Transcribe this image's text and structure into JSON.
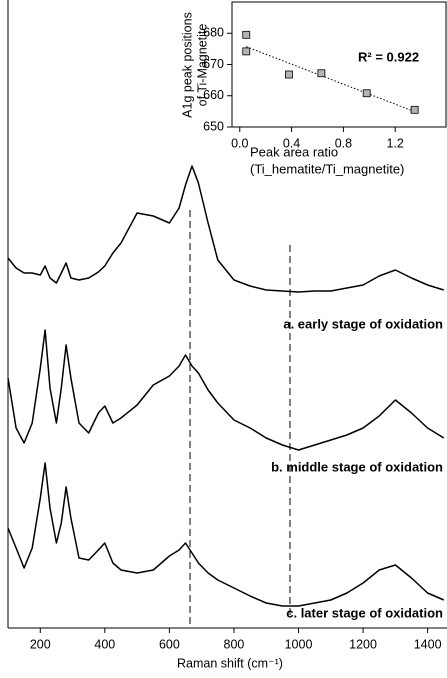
{
  "chart_data": [
    {
      "type": "line",
      "x_label": "Raman shift (cm⁻¹)",
      "x": [
        100,
        125,
        150,
        175,
        200,
        215,
        230,
        250,
        265,
        280,
        295,
        320,
        350,
        380,
        400,
        425,
        450,
        500,
        550,
        600,
        630,
        650,
        670,
        690,
        720,
        750,
        800,
        850,
        900,
        950,
        1000,
        1050,
        1100,
        1150,
        1200,
        1250,
        1300,
        1350,
        1400,
        1450
      ],
      "series": [
        {
          "name": "a. early stage of oxidation",
          "color": "#000000",
          "values": [
            370,
            360,
            355,
            355,
            353,
            362,
            350,
            345,
            355,
            365,
            350,
            348,
            350,
            356,
            362,
            375,
            385,
            415,
            412,
            405,
            420,
            443,
            462,
            445,
            405,
            368,
            348,
            342,
            338,
            337,
            336,
            337,
            337,
            340,
            343,
            352,
            358,
            350,
            343,
            338
          ]
        },
        {
          "name": "b. middle stage of oxidation",
          "color": "#000000",
          "values": [
            250,
            200,
            185,
            205,
            260,
            298,
            240,
            205,
            240,
            283,
            250,
            205,
            195,
            215,
            222,
            205,
            210,
            223,
            243,
            252,
            262,
            273,
            262,
            255,
            238,
            225,
            208,
            200,
            190,
            183,
            178,
            183,
            188,
            193,
            200,
            212,
            228,
            215,
            200,
            190
          ]
        },
        {
          "name": "c. later stage of oxidation",
          "color": "#000000",
          "values": [
            100,
            80,
            60,
            80,
            130,
            165,
            120,
            85,
            105,
            141,
            110,
            70,
            68,
            78,
            85,
            65,
            58,
            55,
            58,
            72,
            78,
            85,
            75,
            65,
            55,
            48,
            40,
            32,
            25,
            22,
            22,
            25,
            28,
            35,
            45,
            58,
            63,
            50,
            35,
            28
          ]
        }
      ],
      "xlim": [
        100,
        1460
      ],
      "xticks": [
        200,
        400,
        600,
        800,
        1000,
        1200,
        1400
      ],
      "ylim": [
        0,
        600
      ]
    },
    {
      "type": "scatter",
      "y_label": [
        "A1g peak positions",
        "of Ti-Magnetite"
      ],
      "x_label": [
        "Peak area ratio",
        "(Ti_hematite/Ti_magnetite)"
      ],
      "annotation": "R² = 0.922",
      "x": [
        0.05,
        0.05,
        0.38,
        0.63,
        0.98,
        1.35
      ],
      "values": [
        679.5,
        674.2,
        666.8,
        667.2,
        660.8,
        655.5
      ],
      "color": "#b4b4b4",
      "trendline": true,
      "xlim": [
        -0.06,
        1.6
      ],
      "xticks": [
        {
          "value": 0,
          "label": "0.0"
        },
        0.4,
        0.8,
        1.2
      ],
      "ylim": [
        650,
        690
      ],
      "yticks": [
        650,
        660,
        670,
        680
      ]
    }
  ]
}
